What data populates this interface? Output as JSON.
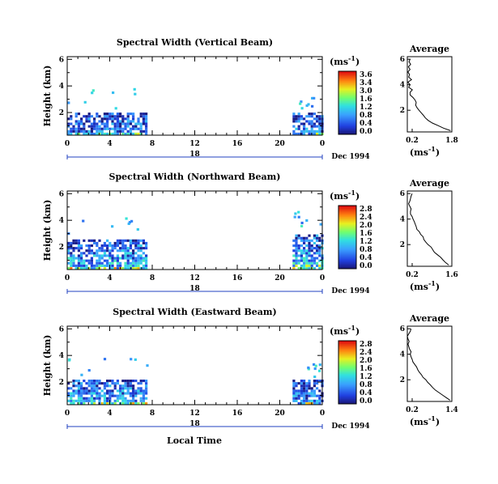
{
  "figure": {
    "xlabel": "Local Time",
    "units_label": "(ms",
    "units_exp": "-1",
    "units_close": ")",
    "date_label": "Dec 1994",
    "avg_title": "Average",
    "ylabel": "Height (km)"
  },
  "chart_data": [
    {
      "type": "heatmap",
      "title": "Spectral Width (Vertical Beam)",
      "ylabel": "Height (km)",
      "xlabel": "Local Time",
      "x_ticks": [
        "0",
        "4",
        "8",
        "12",
        "16",
        "20",
        "0"
      ],
      "x_tick_values": [
        0,
        4,
        8,
        12,
        16,
        20,
        24
      ],
      "y_ticks": [
        "2",
        "4",
        "6"
      ],
      "y_tick_values": [
        2,
        4,
        6
      ],
      "day_marker": "18",
      "xlim": [
        0,
        24
      ],
      "ylim": [
        0.3,
        6.2
      ],
      "colorbar": {
        "labels": [
          "3.6",
          "3.4",
          "3.0",
          "1.6",
          "1.2",
          "0.8",
          "0.4",
          "0.0"
        ],
        "range": [
          0.0,
          3.6
        ]
      },
      "data_blocks": [
        {
          "x": [
            0,
            7.5
          ],
          "top_km": 2.1,
          "mean": 0.9
        },
        {
          "x": [
            21.2,
            24
          ],
          "top_km": 2.1,
          "mean": 0.9
        }
      ],
      "average_profile": {
        "title": "Average",
        "xlabel": "(ms-1)",
        "x_ticks": [
          "0.2",
          "1.8"
        ],
        "xlim": [
          0.2,
          1.8
        ],
        "y_ticks": [
          "2",
          "4",
          "6"
        ],
        "ylim": [
          0.3,
          6.2
        ],
        "height_km": [
          0.4,
          0.6,
          0.8,
          1.0,
          1.2,
          1.4,
          1.6,
          1.8,
          2.0,
          2.2,
          2.4,
          2.6,
          2.8,
          3.0,
          3.2,
          3.4,
          3.6,
          3.8,
          4.0,
          4.2,
          4.4,
          4.6,
          4.8,
          5.0,
          5.2,
          5.4,
          5.6,
          5.8,
          6.0
        ],
        "width": [
          1.75,
          1.5,
          1.3,
          1.1,
          0.95,
          0.85,
          0.78,
          0.7,
          0.62,
          0.55,
          0.5,
          0.52,
          0.48,
          0.4,
          0.3,
          0.3,
          0.38,
          0.25,
          0.3,
          0.22,
          0.35,
          0.25,
          0.28,
          0.22,
          0.3,
          0.24,
          0.32,
          0.26,
          0.3
        ]
      }
    },
    {
      "type": "heatmap",
      "title": "Spectral Width (Northward Beam)",
      "ylabel": "Height (km)",
      "xlabel": "Local Time",
      "x_ticks": [
        "0",
        "4",
        "8",
        "12",
        "16",
        "20",
        "0"
      ],
      "x_tick_values": [
        0,
        4,
        8,
        12,
        16,
        20,
        24
      ],
      "y_ticks": [
        "2",
        "4",
        "6"
      ],
      "y_tick_values": [
        2,
        4,
        6
      ],
      "day_marker": "18",
      "xlim": [
        0,
        24
      ],
      "ylim": [
        0.3,
        6.2
      ],
      "colorbar": {
        "labels": [
          "2.8",
          "2.4",
          "2.0",
          "1.6",
          "1.2",
          "0.8",
          "0.4",
          "0.0"
        ],
        "range": [
          0.0,
          2.8
        ]
      },
      "data_blocks": [
        {
          "x": [
            0,
            7.5
          ],
          "top_km": 2.6,
          "mean": 1.0
        },
        {
          "x": [
            21.2,
            24
          ],
          "top_km": 3.0,
          "mean": 1.0
        }
      ],
      "average_profile": {
        "title": "Average",
        "xlabel": "(ms-1)",
        "x_ticks": [
          "0.2",
          "1.6"
        ],
        "xlim": [
          0.2,
          1.6
        ],
        "y_ticks": [
          "2",
          "4",
          "6"
        ],
        "ylim": [
          0.3,
          6.2
        ],
        "height_km": [
          0.4,
          0.6,
          0.8,
          1.0,
          1.2,
          1.4,
          1.6,
          1.8,
          2.0,
          2.2,
          2.4,
          2.6,
          2.8,
          3.0,
          3.2,
          3.4,
          3.6,
          3.8,
          4.0,
          4.2,
          4.4,
          4.6,
          4.8,
          5.0,
          5.2,
          5.4,
          5.6,
          5.8,
          6.0
        ],
        "width": [
          1.5,
          1.4,
          1.32,
          1.25,
          1.15,
          1.05,
          1.0,
          0.95,
          0.85,
          0.78,
          0.72,
          0.7,
          0.62,
          0.58,
          0.5,
          0.48,
          0.45,
          0.42,
          0.38,
          0.35,
          0.3,
          0.3,
          0.32,
          0.28,
          0.24,
          0.28,
          0.3,
          0.32,
          0.35
        ]
      }
    },
    {
      "type": "heatmap",
      "title": "Spectral Width (Eastward Beam)",
      "ylabel": "Height (km)",
      "xlabel": "Local Time",
      "x_ticks": [
        "0",
        "4",
        "8",
        "12",
        "16",
        "20",
        "0"
      ],
      "x_tick_values": [
        0,
        4,
        8,
        12,
        16,
        20,
        24
      ],
      "y_ticks": [
        "2",
        "4",
        "6"
      ],
      "y_tick_values": [
        2,
        4,
        6
      ],
      "day_marker": "18",
      "xlim": [
        0,
        24
      ],
      "ylim": [
        0.3,
        6.2
      ],
      "colorbar": {
        "labels": [
          "2.8",
          "2.4",
          "2.0",
          "1.6",
          "1.2",
          "0.8",
          "0.4",
          "0.0"
        ],
        "range": [
          0.0,
          2.8
        ]
      },
      "data_blocks": [
        {
          "x": [
            0,
            7.5
          ],
          "top_km": 2.3,
          "mean": 0.9
        },
        {
          "x": [
            21.2,
            24
          ],
          "top_km": 2.2,
          "mean": 0.8
        }
      ],
      "average_profile": {
        "title": "Average",
        "xlabel": "(ms-1)",
        "x_ticks": [
          "0.2",
          "1.4"
        ],
        "xlim": [
          0.2,
          1.4
        ],
        "y_ticks": [
          "2",
          "4",
          "6"
        ],
        "ylim": [
          0.3,
          6.2
        ],
        "height_km": [
          0.4,
          0.6,
          0.8,
          1.0,
          1.2,
          1.4,
          1.6,
          1.8,
          2.0,
          2.2,
          2.4,
          2.6,
          2.8,
          3.0,
          3.2,
          3.4,
          3.6,
          3.8,
          4.0,
          4.2,
          4.4,
          4.6,
          4.8,
          5.0,
          5.2,
          5.4,
          5.6,
          5.8,
          6.0
        ],
        "width": [
          1.35,
          1.25,
          1.15,
          1.05,
          0.95,
          0.88,
          0.82,
          0.75,
          0.7,
          0.62,
          0.58,
          0.52,
          0.48,
          0.45,
          0.4,
          0.35,
          0.33,
          0.3,
          0.28,
          0.3,
          0.26,
          0.24,
          0.22,
          0.25,
          0.22,
          0.2,
          0.24,
          0.28,
          0.3
        ]
      }
    }
  ]
}
